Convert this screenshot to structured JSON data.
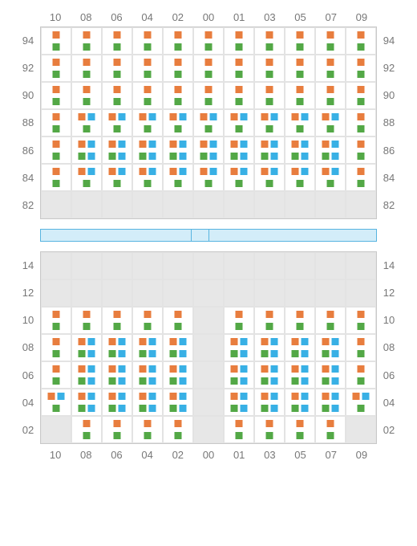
{
  "colors": {
    "orange": "#e87d3e",
    "green": "#53a846",
    "blue": "#38b0e5",
    "emptyBg": "#e7e7e7",
    "barFill": "#d3edf9",
    "barBorder": "#57b4e0",
    "gridBorder": "#c9c9c9",
    "cellBorder": "#e3e3e3",
    "labelColor": "#777777"
  },
  "columns": [
    "10",
    "08",
    "06",
    "04",
    "02",
    "00",
    "01",
    "03",
    "05",
    "07",
    "09"
  ],
  "topBlock": {
    "rowLabels": [
      "94",
      "92",
      "90",
      "88",
      "86",
      "84",
      "82"
    ],
    "rows": [
      [
        {
          "t": "og"
        },
        {
          "t": "og"
        },
        {
          "t": "og"
        },
        {
          "t": "og"
        },
        {
          "t": "og"
        },
        {
          "t": "og"
        },
        {
          "t": "og"
        },
        {
          "t": "og"
        },
        {
          "t": "og"
        },
        {
          "t": "og"
        },
        {
          "t": "og"
        }
      ],
      [
        {
          "t": "og"
        },
        {
          "t": "og"
        },
        {
          "t": "og"
        },
        {
          "t": "og"
        },
        {
          "t": "og"
        },
        {
          "t": "og"
        },
        {
          "t": "og"
        },
        {
          "t": "og"
        },
        {
          "t": "og"
        },
        {
          "t": "og"
        },
        {
          "t": "og"
        }
      ],
      [
        {
          "t": "og"
        },
        {
          "t": "og"
        },
        {
          "t": "og"
        },
        {
          "t": "og"
        },
        {
          "t": "og"
        },
        {
          "t": "og"
        },
        {
          "t": "og"
        },
        {
          "t": "og"
        },
        {
          "t": "og"
        },
        {
          "t": "og"
        },
        {
          "t": "og"
        }
      ],
      [
        {
          "t": "og"
        },
        {
          "t": "obg"
        },
        {
          "t": "obg"
        },
        {
          "t": "obg"
        },
        {
          "t": "obg"
        },
        {
          "t": "obg"
        },
        {
          "t": "obg"
        },
        {
          "t": "obg"
        },
        {
          "t": "obg"
        },
        {
          "t": "obg"
        },
        {
          "t": "og"
        }
      ],
      [
        {
          "t": "og"
        },
        {
          "t": "obgb"
        },
        {
          "t": "obgb"
        },
        {
          "t": "obgb"
        },
        {
          "t": "obgb"
        },
        {
          "t": "obgb"
        },
        {
          "t": "obgb"
        },
        {
          "t": "obgb"
        },
        {
          "t": "obgb"
        },
        {
          "t": "obgb"
        },
        {
          "t": "og"
        }
      ],
      [
        {
          "t": "og"
        },
        {
          "t": "obg"
        },
        {
          "t": "obg"
        },
        {
          "t": "obg"
        },
        {
          "t": "obg"
        },
        {
          "t": "obg"
        },
        {
          "t": "obg"
        },
        {
          "t": "obg"
        },
        {
          "t": "obg"
        },
        {
          "t": "obg"
        },
        {
          "t": "og"
        }
      ],
      [
        {
          "t": "e"
        },
        {
          "t": "e"
        },
        {
          "t": "e"
        },
        {
          "t": "e"
        },
        {
          "t": "e"
        },
        {
          "t": "e"
        },
        {
          "t": "e"
        },
        {
          "t": "e"
        },
        {
          "t": "e"
        },
        {
          "t": "e"
        },
        {
          "t": "e"
        }
      ]
    ]
  },
  "bar": {
    "segments": [
      45,
      5,
      50
    ]
  },
  "bottomBlock": {
    "rowLabels": [
      "14",
      "12",
      "10",
      "08",
      "06",
      "04",
      "02"
    ],
    "rows": [
      [
        {
          "t": "e"
        },
        {
          "t": "e"
        },
        {
          "t": "e"
        },
        {
          "t": "e"
        },
        {
          "t": "e"
        },
        {
          "t": "e"
        },
        {
          "t": "e"
        },
        {
          "t": "e"
        },
        {
          "t": "e"
        },
        {
          "t": "e"
        },
        {
          "t": "e"
        }
      ],
      [
        {
          "t": "e"
        },
        {
          "t": "e"
        },
        {
          "t": "e"
        },
        {
          "t": "e"
        },
        {
          "t": "e"
        },
        {
          "t": "e"
        },
        {
          "t": "e"
        },
        {
          "t": "e"
        },
        {
          "t": "e"
        },
        {
          "t": "e"
        },
        {
          "t": "e"
        }
      ],
      [
        {
          "t": "og"
        },
        {
          "t": "og"
        },
        {
          "t": "og"
        },
        {
          "t": "og"
        },
        {
          "t": "og"
        },
        {
          "t": "e"
        },
        {
          "t": "og"
        },
        {
          "t": "og"
        },
        {
          "t": "og"
        },
        {
          "t": "og"
        },
        {
          "t": "og"
        }
      ],
      [
        {
          "t": "og"
        },
        {
          "t": "obgb"
        },
        {
          "t": "obgb"
        },
        {
          "t": "obgb"
        },
        {
          "t": "obgb"
        },
        {
          "t": "e"
        },
        {
          "t": "obgb"
        },
        {
          "t": "obgb"
        },
        {
          "t": "obgb"
        },
        {
          "t": "obgb"
        },
        {
          "t": "og"
        }
      ],
      [
        {
          "t": "og"
        },
        {
          "t": "obgb"
        },
        {
          "t": "obgb"
        },
        {
          "t": "obgb"
        },
        {
          "t": "obgb"
        },
        {
          "t": "e"
        },
        {
          "t": "obgb"
        },
        {
          "t": "obgb"
        },
        {
          "t": "obgb"
        },
        {
          "t": "obgb"
        },
        {
          "t": "og"
        }
      ],
      [
        {
          "t": "obg"
        },
        {
          "t": "obgb"
        },
        {
          "t": "obgb"
        },
        {
          "t": "obgb"
        },
        {
          "t": "obgb"
        },
        {
          "t": "e"
        },
        {
          "t": "obgb"
        },
        {
          "t": "obgb"
        },
        {
          "t": "obgb"
        },
        {
          "t": "obgb"
        },
        {
          "t": "obg"
        }
      ],
      [
        {
          "t": "e"
        },
        {
          "t": "og"
        },
        {
          "t": "og"
        },
        {
          "t": "og"
        },
        {
          "t": "og"
        },
        {
          "t": "e"
        },
        {
          "t": "og"
        },
        {
          "t": "og"
        },
        {
          "t": "og"
        },
        {
          "t": "og"
        },
        {
          "t": "e"
        }
      ]
    ]
  }
}
